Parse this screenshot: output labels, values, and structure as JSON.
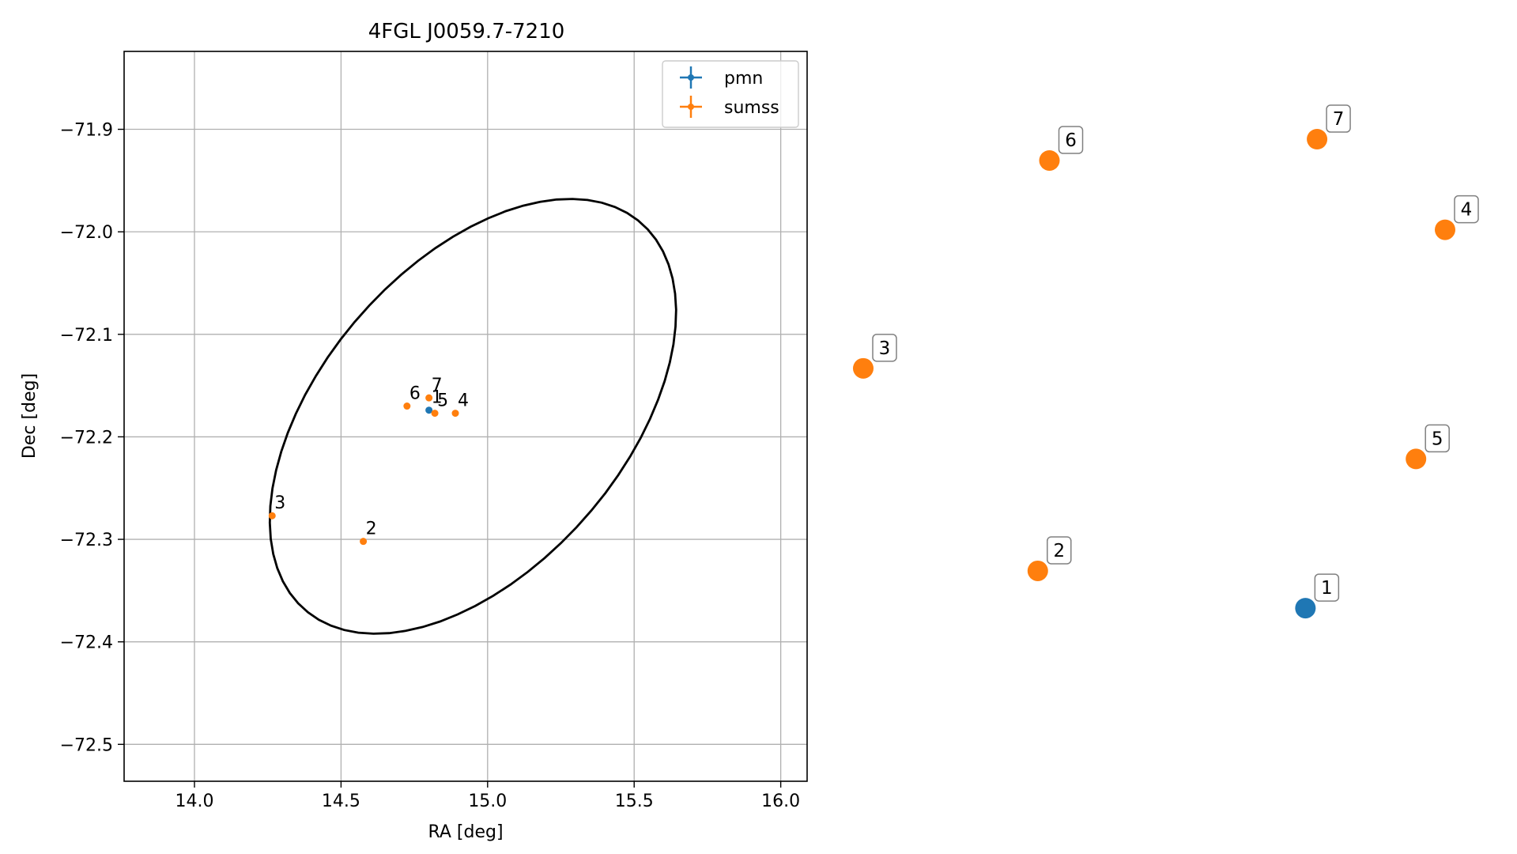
{
  "chart_data": [
    {
      "type": "scatter",
      "title": "4FGL J0059.7-7210",
      "xlabel": "RA [deg]",
      "ylabel": "Dec [deg]",
      "xlim": [
        13.76,
        16.09
      ],
      "ylim": [
        -72.536,
        -71.824
      ],
      "xticks": [
        14.0,
        14.5,
        15.0,
        15.5,
        16.0
      ],
      "xtick_labels": [
        "14.0",
        "14.5",
        "15.0",
        "15.5",
        "16.0"
      ],
      "yticks": [
        -71.9,
        -72.0,
        -72.1,
        -72.2,
        -72.3,
        -72.4,
        -72.5
      ],
      "ytick_labels": [
        "−71.9",
        "−72.0",
        "−72.1",
        "−72.2",
        "−72.3",
        "−72.4",
        "−72.5"
      ],
      "grid": true,
      "legend_position": "top-right",
      "series": [
        {
          "name": "pmn",
          "color": "#1f77b4",
          "points": [
            {
              "label": "1",
              "x": 14.8,
              "y": -72.174
            }
          ]
        },
        {
          "name": "sumss",
          "color": "#ff7f0e",
          "points": [
            {
              "label": "2",
              "x": 14.576,
              "y": -72.302
            },
            {
              "label": "3",
              "x": 14.265,
              "y": -72.277
            },
            {
              "label": "4",
              "x": 14.89,
              "y": -72.177
            },
            {
              "label": "5",
              "x": 14.82,
              "y": -72.177
            },
            {
              "label": "6",
              "x": 14.725,
              "y": -72.17
            },
            {
              "label": "7",
              "x": 14.8,
              "y": -72.162
            }
          ]
        }
      ],
      "ellipse": {
        "center_x": 14.95,
        "center_y": -72.18,
        "semi_major_deg": 0.258,
        "semi_minor_deg": 0.153,
        "angle_deg": 45,
        "color": "#000000"
      }
    },
    {
      "type": "scatter",
      "title": "",
      "axes": "off",
      "points": [
        {
          "label": "1",
          "series": "pmn",
          "color": "#1f77b4",
          "x": 0.76,
          "y": 0.12
        },
        {
          "label": "2",
          "series": "sumss",
          "color": "#ff7f0e",
          "x": 0.3,
          "y": 0.19
        },
        {
          "label": "3",
          "series": "sumss",
          "color": "#ff7f0e",
          "x": 0.0,
          "y": 0.57
        },
        {
          "label": "4",
          "series": "sumss",
          "color": "#ff7f0e",
          "x": 1.0,
          "y": 0.83
        },
        {
          "label": "5",
          "series": "sumss",
          "color": "#ff7f0e",
          "x": 0.95,
          "y": 0.4
        },
        {
          "label": "6",
          "series": "sumss",
          "color": "#ff7f0e",
          "x": 0.32,
          "y": 0.96
        },
        {
          "label": "7",
          "series": "sumss",
          "color": "#ff7f0e",
          "x": 0.78,
          "y": 1.0
        }
      ]
    }
  ]
}
